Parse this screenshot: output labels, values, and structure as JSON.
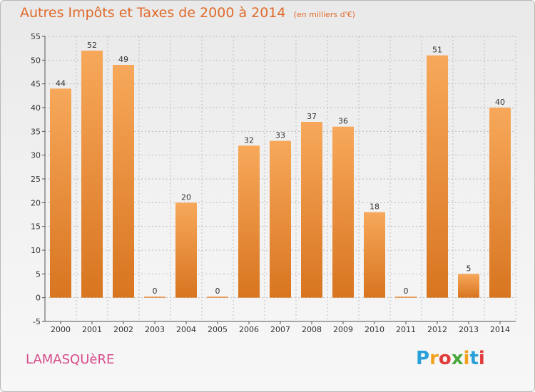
{
  "header": {
    "title": "Autres Impôts et Taxes de 2000 à 2014",
    "subtitle": "(en milliers d'€)"
  },
  "footer": {
    "commune": "LAMASQUèRE",
    "logo_letters": [
      "P",
      "r",
      "o",
      "x",
      "i",
      "t",
      "i"
    ],
    "logo_colors": [
      "#2aa0d8",
      "#f2a01e",
      "#e23b3b",
      "#4aa83a",
      "#f2a01e",
      "#2aa0d8",
      "#e23b3b"
    ]
  },
  "colors": {
    "bar_light": "#f7a85a",
    "bar_dark": "#d87520",
    "grid": "#bdbdbd",
    "axis": "#555555",
    "title": "#e06a2a",
    "commune": "#d64a8a"
  },
  "chart_data": {
    "type": "bar",
    "title": "Autres Impôts et Taxes de 2000 à 2014",
    "subtitle": "(en milliers d'€)",
    "categories": [
      "2000",
      "2001",
      "2002",
      "2003",
      "2004",
      "2005",
      "2006",
      "2007",
      "2008",
      "2009",
      "2010",
      "2011",
      "2012",
      "2013",
      "2014"
    ],
    "values": [
      44,
      52,
      49,
      0,
      20,
      0,
      32,
      33,
      37,
      36,
      18,
      0,
      51,
      5,
      40
    ],
    "ylim": [
      -5,
      55
    ],
    "yticks": [
      -5,
      0,
      5,
      10,
      15,
      20,
      25,
      30,
      35,
      40,
      45,
      50,
      55
    ],
    "grid": true
  }
}
